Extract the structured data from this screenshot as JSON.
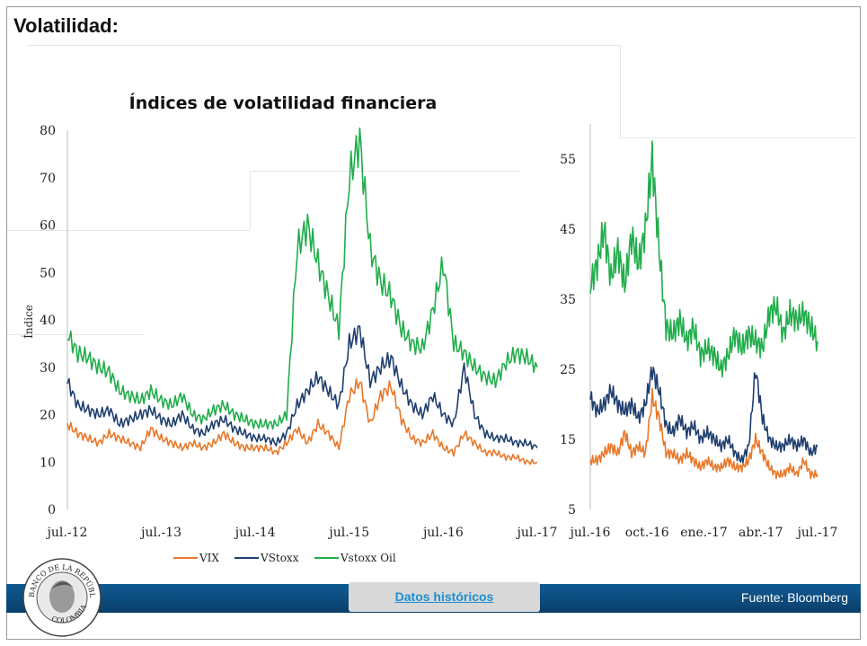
{
  "slide": {
    "title": "Volatilidad:"
  },
  "footer": {
    "button_label": "Datos históricos",
    "source": "Fuente: Bloomberg"
  },
  "logo": {
    "top_text": "BANCO DE LA REPÚBLICA",
    "bottom_text": "COLOMBIA"
  },
  "colors": {
    "VIX": "#e8782a",
    "VStoxx": "#1f3f6e",
    "Vstoxx Oil": "#21ad4b"
  },
  "chart_data": [
    {
      "type": "line",
      "title": "Índices de volatilidad financiera",
      "ylabel": "Índice",
      "ylim": [
        0,
        80
      ],
      "yticks": [
        0,
        10,
        20,
        30,
        40,
        50,
        60,
        70,
        80
      ],
      "xticks": [
        "jul.-12",
        "jul.-13",
        "jul.-14",
        "jul.-15",
        "jul.-16",
        "jul.-17"
      ],
      "legend": "bottom",
      "series": [
        {
          "name": "VIX",
          "values": [
            18,
            16,
            15,
            14,
            16,
            15,
            14,
            13,
            17,
            15,
            14,
            13,
            14,
            13,
            14,
            16,
            14,
            13,
            13,
            13,
            12,
            14,
            17,
            14,
            18,
            16,
            13,
            24,
            27,
            18,
            24,
            26,
            19,
            15,
            14,
            16,
            13,
            12,
            16,
            14,
            12,
            12,
            11,
            11,
            10,
            10
          ]
        },
        {
          "name": "VStoxx",
          "values": [
            27,
            22,
            21,
            20,
            21,
            18,
            19,
            20,
            21,
            19,
            18,
            20,
            17,
            16,
            18,
            19,
            17,
            16,
            15,
            15,
            14,
            16,
            22,
            25,
            28,
            25,
            22,
            35,
            38,
            27,
            30,
            32,
            26,
            22,
            20,
            24,
            20,
            18,
            30,
            20,
            16,
            15,
            15,
            14,
            14,
            13
          ]
        },
        {
          "name": "Vstoxx Oil",
          "values": [
            37,
            33,
            32,
            30,
            29,
            25,
            24,
            23,
            25,
            23,
            22,
            24,
            20,
            19,
            21,
            22,
            20,
            19,
            18,
            18,
            18,
            20,
            55,
            60,
            52,
            45,
            38,
            70,
            78,
            55,
            48,
            45,
            38,
            35,
            34,
            42,
            52,
            35,
            33,
            30,
            28,
            27,
            31,
            33,
            32,
            30
          ]
        }
      ]
    },
    {
      "type": "line",
      "ylim": [
        5,
        60
      ],
      "yticks": [
        5,
        15,
        25,
        35,
        45,
        55
      ],
      "xticks": [
        "jul.-16",
        "oct.-16",
        "ene.-17",
        "abr.-17",
        "jul.-17"
      ],
      "series": [
        {
          "name": "VIX",
          "values": [
            12,
            12,
            13,
            14,
            13,
            16,
            13,
            14,
            13,
            21,
            18,
            13,
            13,
            12,
            13,
            12,
            11,
            12,
            11,
            11,
            12,
            11,
            11,
            12,
            15,
            13,
            11,
            10,
            10,
            11,
            10,
            12,
            10,
            10
          ]
        },
        {
          "name": "VStoxx",
          "values": [
            21,
            19,
            20,
            22,
            20,
            19,
            20,
            18,
            20,
            25,
            22,
            17,
            16,
            18,
            16,
            17,
            15,
            16,
            15,
            14,
            15,
            13,
            12,
            14,
            25,
            18,
            15,
            14,
            14,
            15,
            14,
            15,
            13,
            14
          ]
        },
        {
          "name": "Vstoxx Oil",
          "values": [
            37,
            40,
            45,
            38,
            42,
            37,
            44,
            40,
            45,
            55,
            42,
            31,
            30,
            32,
            29,
            31,
            27,
            28,
            27,
            25,
            27,
            30,
            28,
            30,
            29,
            28,
            33,
            34,
            30,
            33,
            32,
            33,
            31,
            29
          ]
        }
      ]
    }
  ]
}
